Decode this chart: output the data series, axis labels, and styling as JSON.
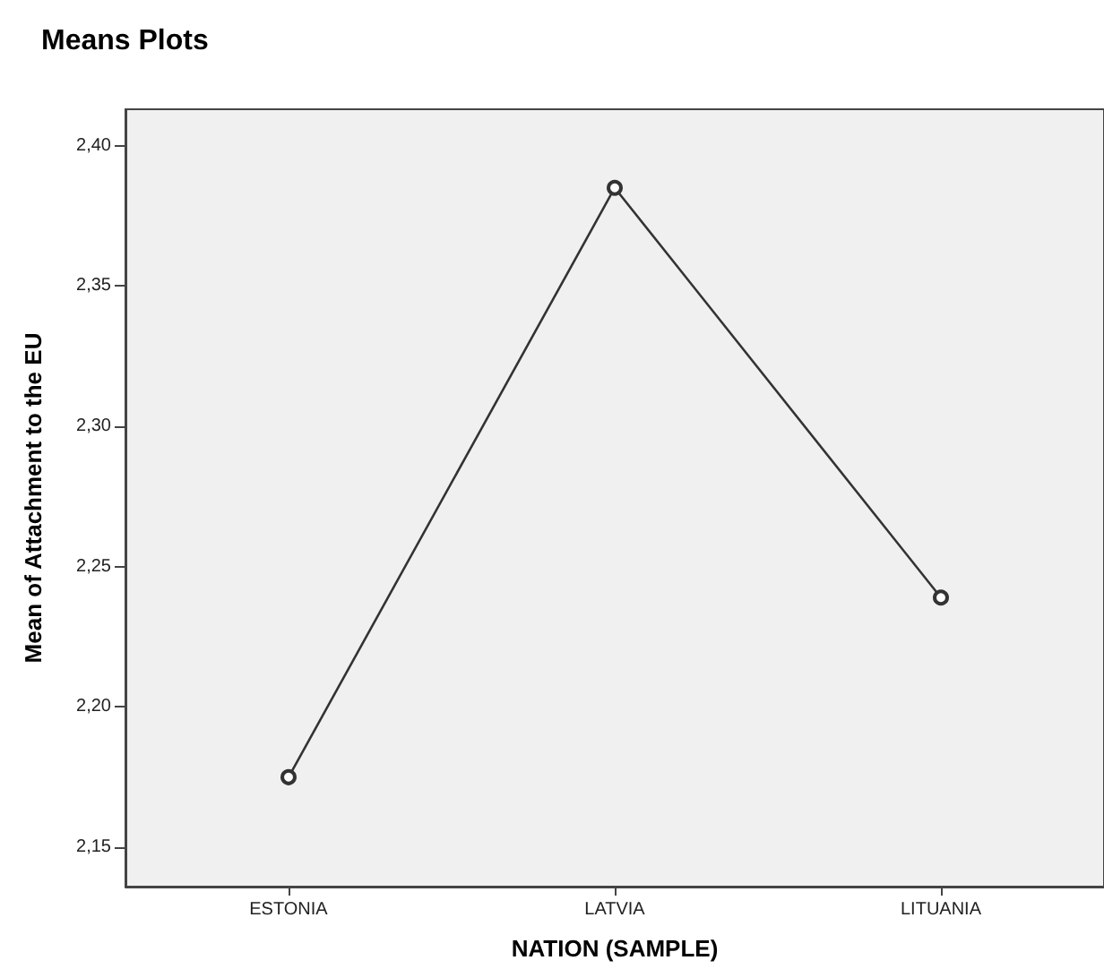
{
  "chart_data": {
    "type": "line",
    "title": "Means Plots",
    "xlabel": "NATION (SAMPLE)",
    "ylabel": "Mean of Attachment to the EU",
    "categories": [
      "ESTONIA",
      "LATVIA",
      "LITUANIA"
    ],
    "series": [
      {
        "color": "#333333",
        "values": [
          2.175,
          2.385,
          2.239
        ]
      }
    ],
    "ylim": [
      2.136,
      2.413
    ],
    "yticks": [
      {
        "value": 2.15,
        "label": "2,15"
      },
      {
        "value": 2.2,
        "label": "2,20"
      },
      {
        "value": 2.25,
        "label": "2,25"
      },
      {
        "value": 2.3,
        "label": "2,30"
      },
      {
        "value": 2.35,
        "label": "2,35"
      },
      {
        "value": 2.4,
        "label": "2,40"
      }
    ],
    "grid": false,
    "marker": "circle",
    "line_style": "solid"
  }
}
